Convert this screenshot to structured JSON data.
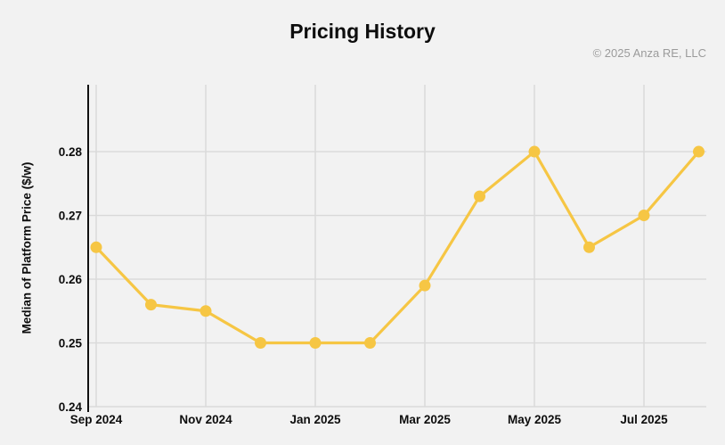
{
  "chart": {
    "title": "Pricing History",
    "copyright": "© 2025 Anza RE, LLC",
    "ylabel": "Median of Platform Price ($/w)"
  },
  "chart_data": {
    "type": "line",
    "title": "Pricing History",
    "xlabel": "",
    "ylabel": "Median of Platform Price ($/w)",
    "x": [
      "Sep 2024",
      "Oct 2024",
      "Nov 2024",
      "Dec 2024",
      "Jan 2025",
      "Feb 2025",
      "Mar 2025",
      "Apr 2025",
      "May 2025",
      "Jun 2025",
      "Jul 2025",
      "Aug 2025"
    ],
    "values": [
      0.265,
      0.256,
      0.255,
      0.25,
      0.25,
      0.25,
      0.259,
      0.273,
      0.28,
      0.265,
      0.27,
      0.28
    ],
    "x_tick_labels": [
      "Sep 2024",
      "Nov 2024",
      "Jan 2025",
      "Mar 2025",
      "May 2025",
      "Jul 2025"
    ],
    "y_ticks": [
      0.24,
      0.25,
      0.26,
      0.27,
      0.28
    ],
    "ylim": [
      0.24,
      0.2905
    ],
    "grid": true,
    "legend": "none",
    "annotation": "© 2025 Anza RE, LLC",
    "line_color": "#f6c644",
    "marker_color": "#f6c644",
    "grid_color": "#d9d9d9",
    "axis_color": "#111111",
    "background_color": "#f2f2f2"
  }
}
